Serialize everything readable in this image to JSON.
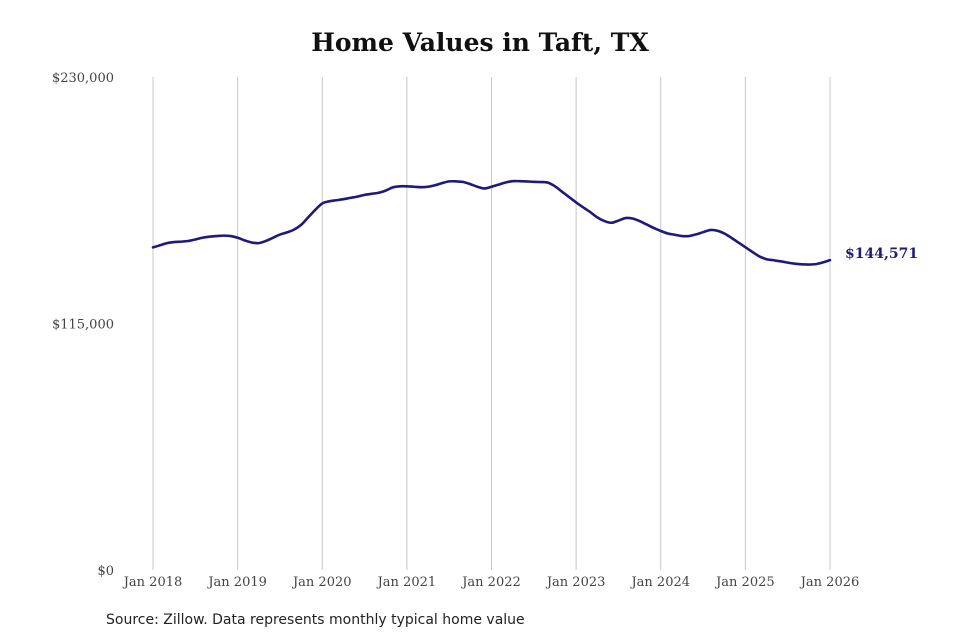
{
  "chart_data": {
    "type": "line",
    "title": "Home Values in Taft, TX",
    "xlabel": "",
    "ylabel": "",
    "x_ticks": [
      "Jan 2018",
      "Jan 2019",
      "Jan 2020",
      "Jan 2021",
      "Jan 2022",
      "Jan 2023",
      "Jan 2024",
      "Jan 2025",
      "Jan 2026"
    ],
    "y_ticks": [
      "$0",
      "$115,000",
      "$230,000"
    ],
    "ylim": [
      0,
      230000
    ],
    "xlim": [
      "2018-01",
      "2026-01"
    ],
    "grid": "vertical",
    "legend": "none",
    "line_color": "#1f1a7a",
    "end_label": "$144,571",
    "series": [
      {
        "x": [
          "2018-01",
          "2018-02",
          "2018-03",
          "2018-04",
          "2018-05",
          "2018-06",
          "2018-07",
          "2018-08",
          "2018-09",
          "2018-10",
          "2018-11",
          "2018-12",
          "2019-01",
          "2019-02",
          "2019-03",
          "2019-04",
          "2019-05",
          "2019-06",
          "2019-07",
          "2019-08",
          "2019-09",
          "2019-10",
          "2019-11",
          "2019-12",
          "2020-01",
          "2020-02",
          "2020-03",
          "2020-04",
          "2020-05",
          "2020-06",
          "2020-07",
          "2020-08",
          "2020-09",
          "2020-10",
          "2020-11",
          "2020-12",
          "2021-01",
          "2021-02",
          "2021-03",
          "2021-04",
          "2021-05",
          "2021-06",
          "2021-07",
          "2021-08",
          "2021-09",
          "2021-10",
          "2021-11",
          "2021-12",
          "2022-01",
          "2022-02",
          "2022-03",
          "2022-04",
          "2022-05",
          "2022-06",
          "2022-07",
          "2022-08",
          "2022-09",
          "2022-10",
          "2022-11",
          "2022-12",
          "2023-01",
          "2023-02",
          "2023-03",
          "2023-04",
          "2023-05",
          "2023-06",
          "2023-07",
          "2023-08",
          "2023-09",
          "2023-10",
          "2023-11",
          "2023-12",
          "2024-01",
          "2024-02",
          "2024-03",
          "2024-04",
          "2024-05",
          "2024-06",
          "2024-07",
          "2024-08",
          "2024-09",
          "2024-10",
          "2024-11",
          "2024-12",
          "2025-01",
          "2025-02",
          "2025-03",
          "2025-04",
          "2025-05",
          "2025-06",
          "2025-07",
          "2025-08",
          "2025-09",
          "2025-10",
          "2025-11",
          "2025-12",
          "2026-01"
        ],
        "values": [
          150500,
          151500,
          152500,
          153000,
          153200,
          153500,
          154200,
          155000,
          155500,
          155800,
          156000,
          155800,
          155000,
          153800,
          152800,
          152500,
          153500,
          155000,
          156500,
          157500,
          158800,
          161000,
          164500,
          168000,
          171000,
          172000,
          172500,
          173000,
          173600,
          174200,
          175000,
          175500,
          176000,
          177000,
          178500,
          179000,
          179000,
          178800,
          178600,
          178800,
          179500,
          180500,
          181300,
          181300,
          181000,
          180000,
          178800,
          178000,
          178800,
          179800,
          180800,
          181400,
          181400,
          181300,
          181100,
          181000,
          180700,
          179000,
          176500,
          174000,
          171500,
          169200,
          167000,
          164500,
          162800,
          162000,
          163000,
          164200,
          164000,
          162800,
          161200,
          159600,
          158200,
          157000,
          156400,
          155800,
          155800,
          156600,
          157600,
          158600,
          158300,
          157000,
          155000,
          152800,
          150600,
          148400,
          146300,
          145000,
          144500,
          144000,
          143400,
          142900,
          142600,
          142500,
          142700,
          143500,
          144571
        ]
      }
    ]
  },
  "footer": {
    "source": "Source: Zillow. Data represents monthly typical home value"
  }
}
